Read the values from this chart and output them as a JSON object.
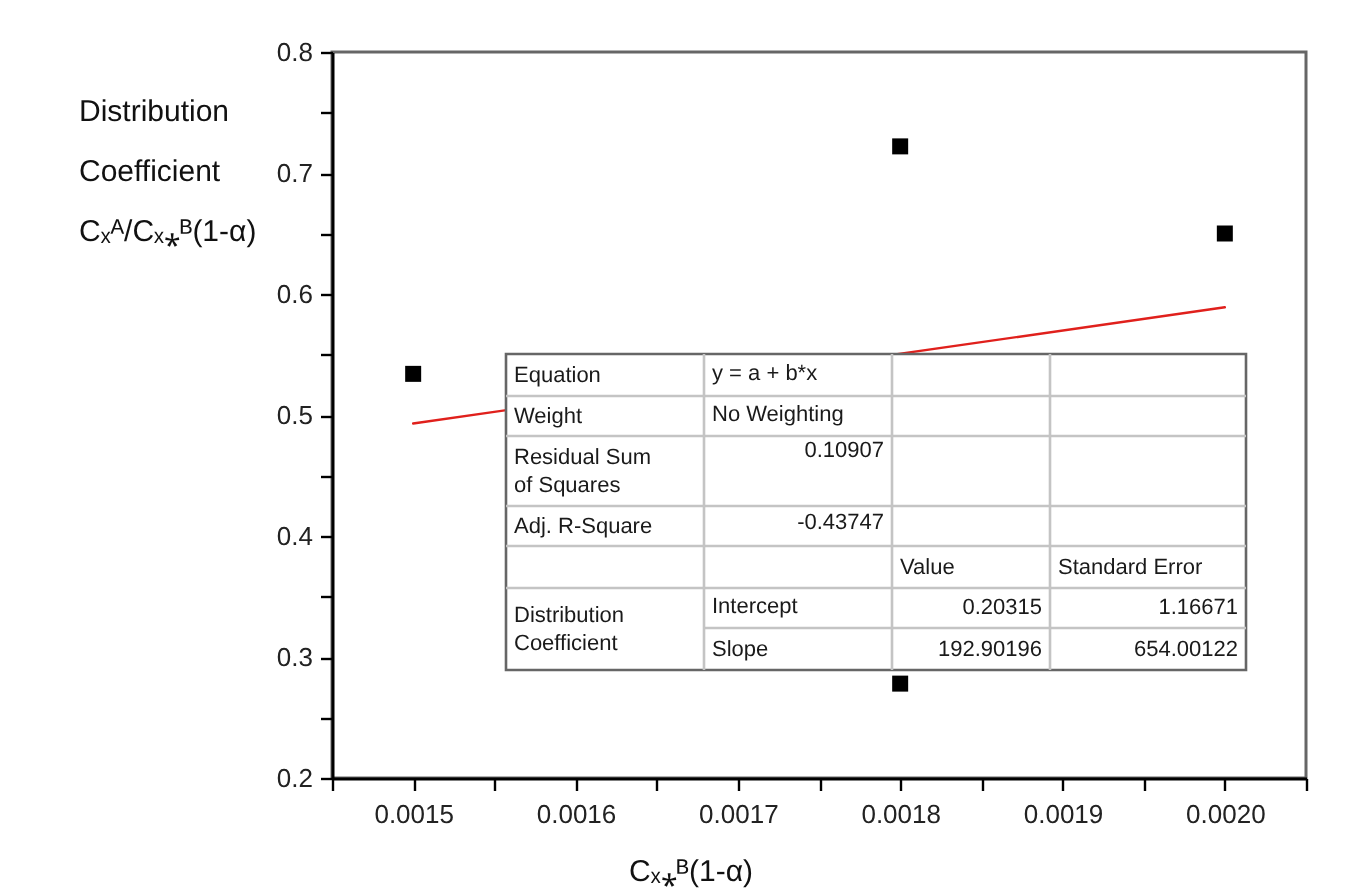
{
  "chart_data": {
    "type": "scatter",
    "xlabel": "Cₓ⁎ᴮ(1-α)",
    "ylabel": "Distribution Coefficient Cₓᴬ/Cₓ⁎ᴮ(1-α)",
    "xlim": [
      0.00145,
      0.00205
    ],
    "xticks": [
      {
        "value": 0.00145,
        "label": null
      },
      0.0015,
      {
        "value": 0.00155,
        "label": null
      },
      0.0016,
      {
        "value": 0.00165,
        "label": null
      },
      0.0017,
      {
        "value": 0.00175,
        "label": null
      },
      0.0018,
      {
        "value": 0.00185,
        "label": null
      },
      0.0019,
      {
        "value": 0.00195,
        "label": null
      },
      {
        "value": 0.002,
        "label": "0.0020"
      },
      {
        "value": 0.00205,
        "label": null
      }
    ],
    "ylim": [
      0.2,
      0.8
    ],
    "yticks": [
      0.2,
      {
        "value": 0.25,
        "label": null
      },
      0.3,
      {
        "value": 0.35,
        "label": null
      },
      0.4,
      {
        "value": 0.45,
        "label": null
      },
      0.5,
      {
        "value": 0.55,
        "label": null
      },
      0.6,
      {
        "value": 0.65,
        "label": null
      },
      0.7,
      {
        "value": 0.75,
        "label": null
      },
      0.8
    ],
    "marker": "square",
    "series": [
      {
        "type": "line",
        "color": "#e0201c",
        "marker": "none",
        "x": [
          0.0015,
          0.002
        ],
        "values": [
          0.493,
          0.589
        ]
      },
      {
        "color": "#000000",
        "x": [
          0.0015,
          0.0018,
          0.0018,
          0.002
        ],
        "values": [
          0.534,
          0.722,
          0.278,
          0.65
        ]
      }
    ],
    "annotations": [
      "Equation",
      "y = a + b*x",
      "Weight",
      "No Weighting",
      "Residual Sum of Squares",
      "0.10907",
      "Adj. R-Square",
      "-0.43747",
      "Value",
      "Standard Error",
      "Distribution Coefficient",
      "Intercept",
      "0.20315",
      "1.16671",
      "Slope",
      "192.90196",
      "654.00122"
    ]
  }
}
